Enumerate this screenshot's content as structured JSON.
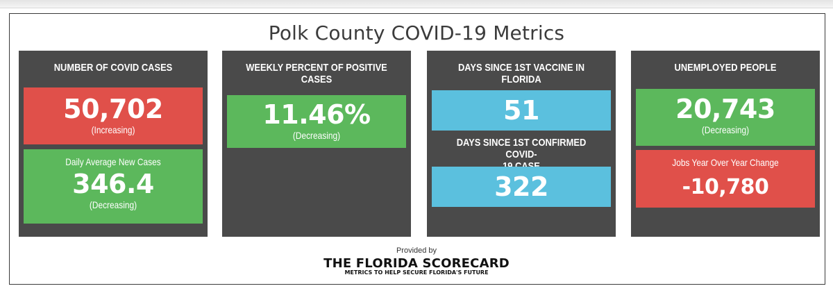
{
  "title": "Polk County COVID-19 Metrics",
  "colors": {
    "panel": "#4a4a4a",
    "red": "#e0504a",
    "green": "#5cb85c",
    "blue": "#5bc0de"
  },
  "panels": [
    {
      "heading": "NUMBER OF COVID CASES",
      "primary": {
        "value": "50,702",
        "trend": "(Increasing)",
        "color": "red"
      },
      "secondary": {
        "label": "Daily Average New Cases",
        "value": "346.4",
        "trend": "(Decreasing)",
        "color": "green"
      }
    },
    {
      "heading_line1": "WEEKLY PERCENT OF POSITIVE",
      "heading_line2": "CASES",
      "primary": {
        "value": "11.46%",
        "trend": "(Decreasing)",
        "color": "green"
      }
    },
    {
      "heading_line1": "DAYS SINCE 1ST VACCINE IN",
      "heading_line2": "FLORIDA",
      "primary": {
        "value": "51",
        "color": "blue"
      },
      "sub_heading_line1": "DAYS SINCE 1ST CONFIRMED COVID-",
      "sub_heading_line2": "19 CASE",
      "secondary": {
        "value": "322",
        "color": "blue"
      }
    },
    {
      "heading": "UNEMPLOYED PEOPLE",
      "primary": {
        "value": "20,743",
        "trend": "(Decreasing)",
        "color": "green"
      },
      "secondary": {
        "label": "Jobs Year Over Year Change",
        "value": "-10,780",
        "color": "red"
      }
    }
  ],
  "footer": {
    "provided_by": "Provided by",
    "logo": "THE FLORIDA SCORECARD",
    "tagline": "METRICS TO HELP SECURE FLORIDA'S FUTURE"
  }
}
